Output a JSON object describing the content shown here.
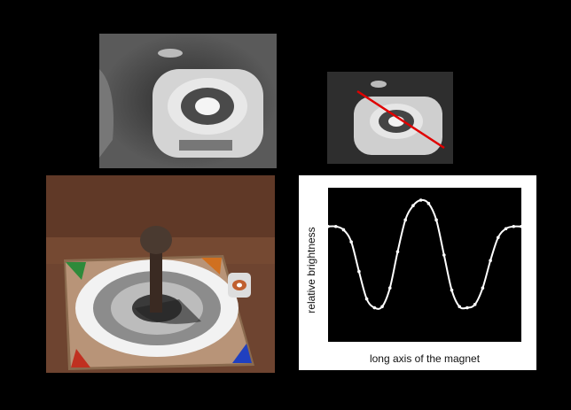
{
  "chart_data": {
    "type": "line",
    "xlabel": "long axis of the magnet",
    "ylabel": "relative brightness",
    "x": [
      0,
      1,
      2,
      3,
      4,
      5,
      6,
      7,
      8,
      9,
      10,
      11,
      12,
      13,
      14,
      15,
      16,
      17,
      18,
      19,
      20,
      21,
      22,
      23,
      24,
      25
    ],
    "values": [
      0.76,
      0.76,
      0.73,
      0.62,
      0.35,
      0.1,
      0.02,
      0.03,
      0.2,
      0.53,
      0.82,
      0.95,
      1.0,
      0.97,
      0.82,
      0.5,
      0.18,
      0.03,
      0.02,
      0.05,
      0.2,
      0.45,
      0.66,
      0.74,
      0.76,
      0.76
    ],
    "ylim": [
      0,
      1
    ],
    "grid": false,
    "line_color": "#ffffff",
    "background": "#000000"
  }
}
